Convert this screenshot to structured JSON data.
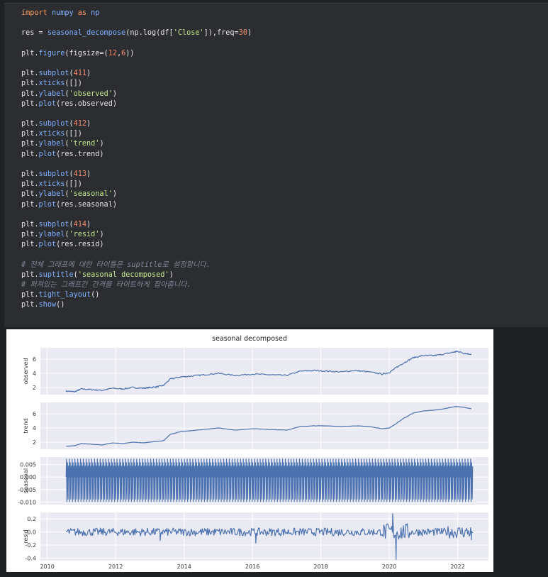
{
  "code_cell": {
    "lines": [
      [
        {
          "t": "import ",
          "c": "kw"
        },
        {
          "t": "numpy ",
          "c": "fn"
        },
        {
          "t": "as ",
          "c": "kw"
        },
        {
          "t": "np",
          "c": "fn"
        }
      ],
      [],
      [
        {
          "t": "res = ",
          "c": "plain"
        },
        {
          "t": "seasonal_decompose",
          "c": "fn"
        },
        {
          "t": "(np.log(df[",
          "c": "plain"
        },
        {
          "t": "'Close'",
          "c": "str"
        },
        {
          "t": "]),freq=",
          "c": "plain"
        },
        {
          "t": "30",
          "c": "num"
        },
        {
          "t": ")",
          "c": "plain"
        }
      ],
      [],
      [
        {
          "t": "plt.",
          "c": "plain"
        },
        {
          "t": "figure",
          "c": "fn"
        },
        {
          "t": "(figsize=(",
          "c": "plain"
        },
        {
          "t": "12",
          "c": "num"
        },
        {
          "t": ",",
          "c": "plain"
        },
        {
          "t": "6",
          "c": "num"
        },
        {
          "t": "))",
          "c": "plain"
        }
      ],
      [],
      [
        {
          "t": "plt.",
          "c": "plain"
        },
        {
          "t": "subplot",
          "c": "fn"
        },
        {
          "t": "(",
          "c": "plain"
        },
        {
          "t": "411",
          "c": "num"
        },
        {
          "t": ")",
          "c": "plain"
        }
      ],
      [
        {
          "t": "plt.",
          "c": "plain"
        },
        {
          "t": "xticks",
          "c": "fn"
        },
        {
          "t": "([])",
          "c": "plain"
        }
      ],
      [
        {
          "t": "plt.",
          "c": "plain"
        },
        {
          "t": "ylabel",
          "c": "fn"
        },
        {
          "t": "(",
          "c": "plain"
        },
        {
          "t": "'observed'",
          "c": "str"
        },
        {
          "t": ")",
          "c": "plain"
        }
      ],
      [
        {
          "t": "plt.",
          "c": "plain"
        },
        {
          "t": "plot",
          "c": "fn"
        },
        {
          "t": "(res.observed)",
          "c": "plain"
        }
      ],
      [],
      [
        {
          "t": "plt.",
          "c": "plain"
        },
        {
          "t": "subplot",
          "c": "fn"
        },
        {
          "t": "(",
          "c": "plain"
        },
        {
          "t": "412",
          "c": "num"
        },
        {
          "t": ")",
          "c": "plain"
        }
      ],
      [
        {
          "t": "plt.",
          "c": "plain"
        },
        {
          "t": "xticks",
          "c": "fn"
        },
        {
          "t": "([])",
          "c": "plain"
        }
      ],
      [
        {
          "t": "plt.",
          "c": "plain"
        },
        {
          "t": "ylabel",
          "c": "fn"
        },
        {
          "t": "(",
          "c": "plain"
        },
        {
          "t": "'trend'",
          "c": "str"
        },
        {
          "t": ")",
          "c": "plain"
        }
      ],
      [
        {
          "t": "plt.",
          "c": "plain"
        },
        {
          "t": "plot",
          "c": "fn"
        },
        {
          "t": "(res.trend)",
          "c": "plain"
        }
      ],
      [],
      [
        {
          "t": "plt.",
          "c": "plain"
        },
        {
          "t": "subplot",
          "c": "fn"
        },
        {
          "t": "(",
          "c": "plain"
        },
        {
          "t": "413",
          "c": "num"
        },
        {
          "t": ")",
          "c": "plain"
        }
      ],
      [
        {
          "t": "plt.",
          "c": "plain"
        },
        {
          "t": "xticks",
          "c": "fn"
        },
        {
          "t": "([])",
          "c": "plain"
        }
      ],
      [
        {
          "t": "plt.",
          "c": "plain"
        },
        {
          "t": "ylabel",
          "c": "fn"
        },
        {
          "t": "(",
          "c": "plain"
        },
        {
          "t": "'seasonal'",
          "c": "str"
        },
        {
          "t": ")",
          "c": "plain"
        }
      ],
      [
        {
          "t": "plt.",
          "c": "plain"
        },
        {
          "t": "plot",
          "c": "fn"
        },
        {
          "t": "(res.seasonal)",
          "c": "plain"
        }
      ],
      [],
      [
        {
          "t": "plt.",
          "c": "plain"
        },
        {
          "t": "subplot",
          "c": "fn"
        },
        {
          "t": "(",
          "c": "plain"
        },
        {
          "t": "414",
          "c": "num"
        },
        {
          "t": ")",
          "c": "plain"
        }
      ],
      [
        {
          "t": "plt.",
          "c": "plain"
        },
        {
          "t": "ylabel",
          "c": "fn"
        },
        {
          "t": "(",
          "c": "plain"
        },
        {
          "t": "'resid'",
          "c": "str"
        },
        {
          "t": ")",
          "c": "plain"
        }
      ],
      [
        {
          "t": "plt.",
          "c": "plain"
        },
        {
          "t": "plot",
          "c": "fn"
        },
        {
          "t": "(res.resid)",
          "c": "plain"
        }
      ],
      [],
      [
        {
          "t": "# 전체 그래프에 대한 타이틀은 suptitle로 설정합니다.",
          "c": "cmt"
        }
      ],
      [
        {
          "t": "plt.",
          "c": "plain"
        },
        {
          "t": "suptitle",
          "c": "fn"
        },
        {
          "t": "(",
          "c": "plain"
        },
        {
          "t": "'seasonal decomposed'",
          "c": "str"
        },
        {
          "t": ")",
          "c": "plain"
        }
      ],
      [
        {
          "t": "# 퍼져있는 그래프간 간격을 타이트하게 잡아줍니다.",
          "c": "cmt"
        }
      ],
      [
        {
          "t": "plt.",
          "c": "plain"
        },
        {
          "t": "tight_layout",
          "c": "fn"
        },
        {
          "t": "()",
          "c": "plain"
        }
      ],
      [
        {
          "t": "plt.",
          "c": "plain"
        },
        {
          "t": "show",
          "c": "fn"
        },
        {
          "t": "()",
          "c": "plain"
        }
      ]
    ]
  },
  "chart_data": [
    {
      "type": "line",
      "title": "seasonal decomposed",
      "ylabel": "observed",
      "ylim": [
        1.0,
        7.6
      ],
      "yticks": [
        "2",
        "4",
        "6"
      ],
      "ytick_values": [
        2,
        4,
        6
      ],
      "color": "#4c72b0",
      "x": [
        2010.55,
        2010.8,
        2011.0,
        2011.3,
        2011.6,
        2011.9,
        2012.2,
        2012.5,
        2012.8,
        2013.0,
        2013.2,
        2013.4,
        2013.6,
        2013.9,
        2014.2,
        2014.6,
        2015.0,
        2015.5,
        2016.0,
        2016.5,
        2017.0,
        2017.4,
        2017.8,
        2018.2,
        2018.6,
        2019.0,
        2019.4,
        2019.8,
        2020.0,
        2020.2,
        2020.4,
        2020.7,
        2021.0,
        2021.3,
        2021.6,
        2021.9,
        2022.0,
        2022.2,
        2022.4
      ],
      "y": [
        1.5,
        1.4,
        1.8,
        1.7,
        1.6,
        1.9,
        1.8,
        2.0,
        1.9,
        2.0,
        2.1,
        2.3,
        3.2,
        3.5,
        3.6,
        3.8,
        4.0,
        3.7,
        3.9,
        3.8,
        3.7,
        4.3,
        4.4,
        4.3,
        4.2,
        4.4,
        4.2,
        3.9,
        4.1,
        4.8,
        5.4,
        6.2,
        6.5,
        6.5,
        6.7,
        7.0,
        7.1,
        6.8,
        6.7
      ]
    },
    {
      "type": "line",
      "ylabel": "trend",
      "ylim": [
        1.0,
        7.6
      ],
      "yticks": [
        "2",
        "4",
        "6"
      ],
      "ytick_values": [
        2,
        4,
        6
      ],
      "color": "#4c72b0",
      "x": [
        2010.55,
        2010.8,
        2011.0,
        2011.3,
        2011.6,
        2011.9,
        2012.2,
        2012.5,
        2012.8,
        2013.0,
        2013.2,
        2013.4,
        2013.6,
        2013.9,
        2014.2,
        2014.6,
        2015.0,
        2015.5,
        2016.0,
        2016.5,
        2017.0,
        2017.4,
        2017.8,
        2018.2,
        2018.6,
        2019.0,
        2019.4,
        2019.8,
        2020.0,
        2020.2,
        2020.4,
        2020.7,
        2021.0,
        2021.3,
        2021.6,
        2021.9,
        2022.0,
        2022.2,
        2022.4
      ],
      "y": [
        1.4,
        1.5,
        1.8,
        1.7,
        1.6,
        1.9,
        1.8,
        2.0,
        1.9,
        2.0,
        2.1,
        2.2,
        3.1,
        3.5,
        3.6,
        3.8,
        4.0,
        3.7,
        3.9,
        3.8,
        3.7,
        4.2,
        4.3,
        4.3,
        4.2,
        4.3,
        4.2,
        3.9,
        4.0,
        4.6,
        5.3,
        6.1,
        6.4,
        6.5,
        6.7,
        7.0,
        7.0,
        6.9,
        6.7
      ]
    },
    {
      "type": "line",
      "ylabel": "seasonal",
      "ylim": [
        -0.011,
        0.008
      ],
      "yticks": [
        "0.005",
        "0.000",
        "-0.005",
        "-0.010"
      ],
      "ytick_values": [
        0.005,
        0.0,
        -0.005,
        -0.01
      ],
      "color": "#4c72b0",
      "period_days": 30,
      "x_range": [
        2010.55,
        2022.45
      ],
      "amplitude": [
        -0.0098,
        0.0072
      ]
    },
    {
      "type": "line",
      "ylabel": "resid",
      "ylim": [
        -0.44,
        0.3
      ],
      "yticks": [
        "0.2",
        "0.0",
        "-0.2",
        "-0.4"
      ],
      "ytick_values": [
        0.2,
        0.0,
        -0.2,
        -0.4
      ],
      "xlim": [
        2009.8,
        2022.9
      ],
      "xticks": [
        "2010",
        "2012",
        "2014",
        "2016",
        "2018",
        "2020",
        "2022"
      ],
      "xtick_values": [
        2010,
        2012,
        2014,
        2016,
        2018,
        2020,
        2022
      ],
      "color": "#4c72b0",
      "x_range": [
        2010.55,
        2022.45
      ],
      "spikes": [
        {
          "x": 2020.2,
          "y": -0.42
        },
        {
          "x": 2020.1,
          "y": 0.28
        },
        {
          "x": 2013.3,
          "y": -0.13
        },
        {
          "x": 2016.1,
          "y": -0.17
        },
        {
          "x": 2022.4,
          "y": -0.12
        }
      ]
    }
  ]
}
